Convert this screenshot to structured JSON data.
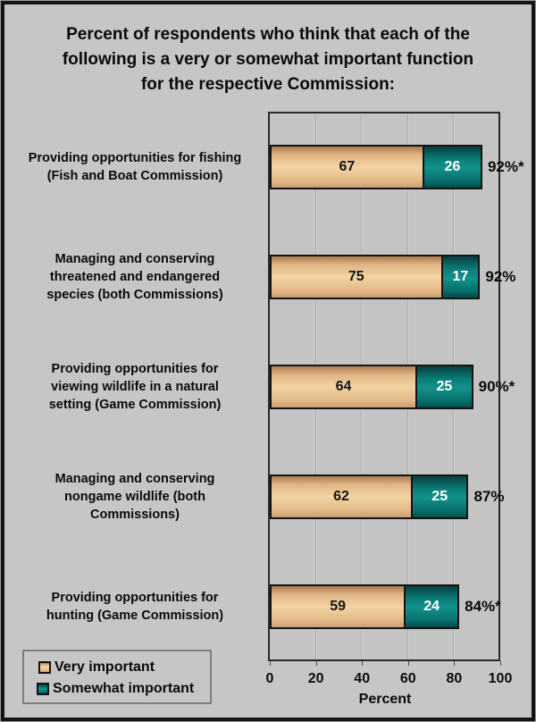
{
  "title": "Percent of respondents who think that each of the\nfollowing is a very or somewhat important function\nfor the respective Commission:",
  "chart_data": {
    "type": "bar",
    "orientation": "horizontal",
    "stacked": true,
    "title": "Percent of respondents who think that each of the following is a very or somewhat important function for the respective Commission:",
    "categories": [
      "Providing opportunities for fishing\n(Fish and Boat Commission)",
      "Managing and conserving\nthreatened and endangered\nspecies (both Commissions)",
      "Providing opportunities for\nviewing wildlife in a natural\nsetting (Game Commission)",
      "Managing and conserving\nnongame wildlife (both\nCommissions)",
      "Providing opportunities for\nhunting (Game Commission)"
    ],
    "series": [
      {
        "name": "Very important",
        "values": [
          67,
          75,
          64,
          62,
          59
        ]
      },
      {
        "name": "Somewhat important",
        "values": [
          26,
          17,
          25,
          25,
          24
        ]
      }
    ],
    "totals": [
      "92%*",
      "92%",
      "90%*",
      "87%",
      "84%*"
    ],
    "xlabel": "Percent",
    "x_ticks": [
      0,
      20,
      40,
      60,
      80,
      100
    ],
    "xlim": [
      0,
      100
    ],
    "grid": true,
    "legend_position": "bottom-left"
  },
  "legend": {
    "items": [
      {
        "label": "Very important",
        "swatch": "very"
      },
      {
        "label": "Somewhat important",
        "swatch": "somewhat"
      }
    ]
  },
  "colors": {
    "very_important": "#E9BE8D",
    "somewhat_important": "#0B7F7B",
    "background": "#C6C6C6",
    "plot_border": "#2A2A2A",
    "bar_border": "#141414",
    "text": "#0A0A0A",
    "value_text_on_teal": "#FFFFFF"
  }
}
